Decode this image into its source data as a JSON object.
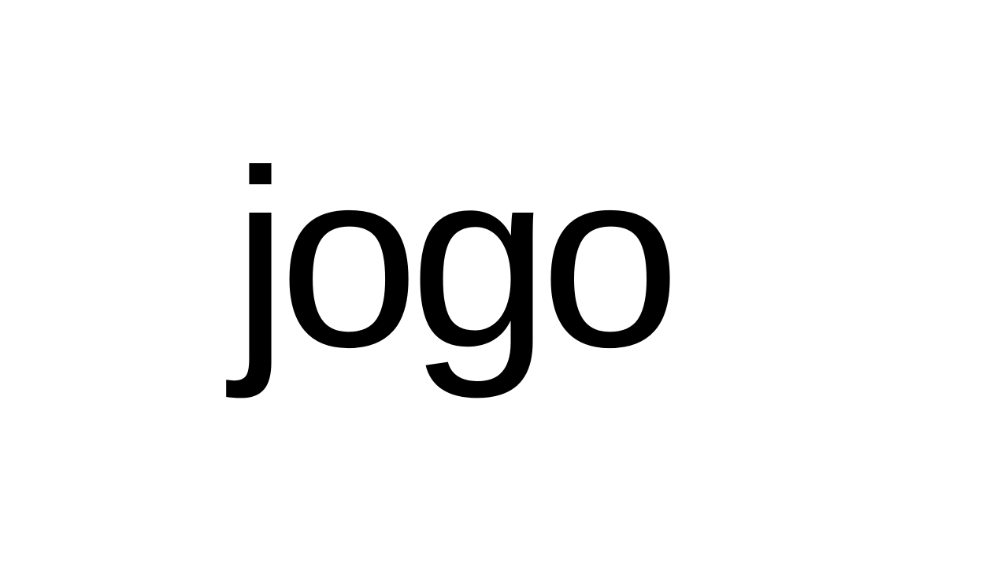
{
  "slide": {
    "word": "jogo"
  },
  "colors": {
    "background": "#ffffff",
    "text": "#000000"
  }
}
